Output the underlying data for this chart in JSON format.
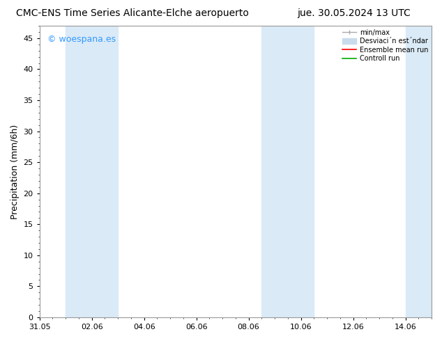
{
  "title_left": "CMC-ENS Time Series Alicante-Elche aeropuerto",
  "title_right": "jue. 30.05.2024 13 UTC",
  "ylabel": "Precipitation (mm/6h)",
  "ylim": [
    0,
    47
  ],
  "yticks": [
    0,
    5,
    10,
    15,
    20,
    25,
    30,
    35,
    40,
    45
  ],
  "xtick_labels": [
    "31.05",
    "02.06",
    "04.06",
    "06.06",
    "08.06",
    "10.06",
    "12.06",
    "14.06"
  ],
  "xtick_positions": [
    0,
    2,
    4,
    6,
    8,
    10,
    12,
    14
  ],
  "xlim": [
    0,
    15
  ],
  "bg_color": "#ffffff",
  "shaded_bands": [
    {
      "start": 1.0,
      "end": 3.0,
      "color": "#daeaf7"
    },
    {
      "start": 8.5,
      "end": 10.5,
      "color": "#daeaf7"
    },
    {
      "start": 14.0,
      "end": 15.0,
      "color": "#daeaf7"
    }
  ],
  "watermark_text": "© woespana.es",
  "watermark_color": "#3399ff",
  "legend_minmax_color": "#aaaaaa",
  "legend_std_color": "#c8dced",
  "legend_ensemble_color": "#ff0000",
  "legend_control_color": "#00aa00",
  "title_fontsize": 10,
  "axis_label_fontsize": 9,
  "tick_fontsize": 8,
  "legend_fontsize": 7,
  "watermark_fontsize": 9
}
